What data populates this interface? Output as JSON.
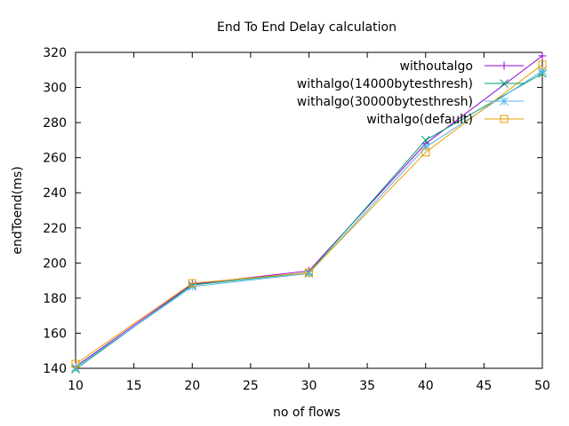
{
  "chart_data": {
    "type": "line",
    "title": "End To End Delay calculation",
    "xlabel": "no of flows",
    "ylabel": "endToend(ms)",
    "xlim": [
      10,
      50
    ],
    "ylim": [
      140,
      320
    ],
    "xticks": [
      10,
      15,
      20,
      25,
      30,
      35,
      40,
      45,
      50
    ],
    "yticks": [
      140,
      160,
      180,
      200,
      220,
      240,
      260,
      280,
      300,
      320
    ],
    "grid": false,
    "legend_position": "top-right",
    "x": [
      10,
      20,
      30,
      40,
      50
    ],
    "series": [
      {
        "name": "withoutalgo",
        "marker": "plus",
        "color": "#9400d3",
        "values": [
          141,
          188,
          195.5,
          268,
          318
        ]
      },
      {
        "name": "withalgo(14000bytesthresh)",
        "marker": "cross",
        "color": "#009e73",
        "values": [
          139.5,
          187.5,
          194.5,
          270,
          308
        ]
      },
      {
        "name": "withalgo(30000bytesthresh)",
        "marker": "asterisk",
        "color": "#56b4e9",
        "values": [
          140.5,
          186.5,
          194,
          266,
          309.5
        ]
      },
      {
        "name": "withalgo(default)",
        "marker": "square",
        "color": "#e69f00",
        "values": [
          142.5,
          188.5,
          194.5,
          263,
          313
        ]
      }
    ]
  }
}
